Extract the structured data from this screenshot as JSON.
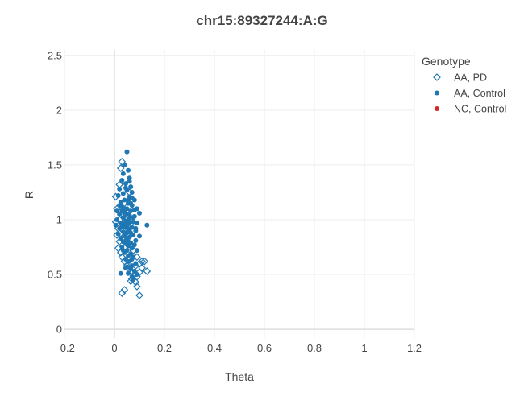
{
  "chart_data": {
    "type": "scatter",
    "title": "chr15:89327244:A:G",
    "xlabel": "Theta",
    "ylabel": "R",
    "xlim": [
      -0.2,
      1.2
    ],
    "ylim": [
      -0.08,
      2.55
    ],
    "x_ticks": [
      -0.2,
      0,
      0.2,
      0.4,
      0.6,
      0.8,
      1,
      1.2
    ],
    "x_tick_labels": [
      "−0.2",
      "0",
      "0.2",
      "0.4",
      "0.6",
      "0.8",
      "1",
      "1.2"
    ],
    "y_ticks": [
      0,
      0.5,
      1,
      1.5,
      2,
      2.5
    ],
    "y_tick_labels": [
      "0",
      "0.5",
      "1",
      "1.5",
      "2",
      "2.5"
    ],
    "grid": true,
    "legend": {
      "title": "Genotype",
      "position": "top-right"
    },
    "series": [
      {
        "name": "AA, PD",
        "marker": "diamond-open",
        "color": "#1f77b4",
        "points": [
          [
            0.03,
            1.53
          ],
          [
            0.025,
            1.47
          ],
          [
            0.005,
            1.21
          ],
          [
            0.02,
            1.32
          ],
          [
            0.01,
            1.1
          ],
          [
            0.005,
            0.98
          ],
          [
            0.015,
            0.92
          ],
          [
            0.01,
            0.86
          ],
          [
            0.02,
            0.8
          ],
          [
            0.015,
            0.74
          ],
          [
            0.025,
            0.7
          ],
          [
            0.03,
            0.66
          ],
          [
            0.04,
            0.62
          ],
          [
            0.05,
            0.58
          ],
          [
            0.06,
            0.55
          ],
          [
            0.07,
            0.52
          ],
          [
            0.08,
            0.5
          ],
          [
            0.09,
            0.48
          ],
          [
            0.1,
            0.52
          ],
          [
            0.11,
            0.56
          ],
          [
            0.12,
            0.62
          ],
          [
            0.13,
            0.53
          ],
          [
            0.1,
            0.6
          ],
          [
            0.085,
            0.58
          ],
          [
            0.07,
            0.46
          ],
          [
            0.065,
            0.44
          ],
          [
            0.085,
            0.43
          ],
          [
            0.09,
            0.39
          ],
          [
            0.1,
            0.31
          ],
          [
            0.04,
            0.36
          ],
          [
            0.03,
            0.33
          ],
          [
            0.035,
            0.9
          ],
          [
            0.045,
            1.05
          ],
          [
            0.055,
            0.95
          ],
          [
            0.04,
            1.15
          ],
          [
            0.06,
            1.25
          ],
          [
            0.05,
            0.78
          ],
          [
            0.075,
            0.72
          ],
          [
            0.09,
            0.66
          ],
          [
            0.11,
            0.62
          ],
          [
            0.02,
            1.0
          ],
          [
            0.035,
            0.84
          ]
        ]
      },
      {
        "name": "AA, Control",
        "marker": "circle",
        "color": "#1f77b4",
        "points": [
          [
            0.05,
            1.62
          ],
          [
            0.04,
            1.5
          ],
          [
            0.035,
            1.42
          ],
          [
            0.055,
            1.45
          ],
          [
            0.06,
            1.38
          ],
          [
            0.03,
            1.36
          ],
          [
            0.045,
            1.33
          ],
          [
            0.065,
            1.3
          ],
          [
            0.02,
            1.28
          ],
          [
            0.05,
            1.27
          ],
          [
            0.07,
            1.25
          ],
          [
            0.035,
            1.24
          ],
          [
            0.015,
            1.22
          ],
          [
            0.06,
            1.21
          ],
          [
            0.08,
            1.18
          ],
          [
            0.04,
            1.18
          ],
          [
            0.025,
            1.16
          ],
          [
            0.055,
            1.15
          ],
          [
            0.07,
            1.13
          ],
          [
            0.09,
            1.1
          ],
          [
            0.03,
            1.12
          ],
          [
            0.045,
            1.1
          ],
          [
            0.01,
            1.08
          ],
          [
            0.065,
            1.08
          ],
          [
            0.1,
            1.06
          ],
          [
            0.02,
            1.05
          ],
          [
            0.05,
            1.05
          ],
          [
            0.08,
            1.03
          ],
          [
            0.035,
            1.02
          ],
          [
            0.06,
            1.01
          ],
          [
            0.01,
            1.0
          ],
          [
            0.045,
            0.99
          ],
          [
            0.075,
            0.98
          ],
          [
            0.09,
            0.97
          ],
          [
            0.025,
            0.97
          ],
          [
            0.055,
            0.96
          ],
          [
            0.13,
            0.95
          ],
          [
            0.005,
            0.95
          ],
          [
            0.04,
            0.94
          ],
          [
            0.07,
            0.93
          ],
          [
            0.02,
            0.92
          ],
          [
            0.06,
            0.91
          ],
          [
            0.085,
            0.9
          ],
          [
            0.035,
            0.89
          ],
          [
            0.05,
            0.88
          ],
          [
            0.015,
            0.87
          ],
          [
            0.075,
            0.86
          ],
          [
            0.04,
            0.85
          ],
          [
            0.1,
            0.85
          ],
          [
            0.06,
            0.84
          ],
          [
            0.025,
            0.83
          ],
          [
            0.05,
            0.82
          ],
          [
            0.085,
            0.81
          ],
          [
            0.035,
            0.8
          ],
          [
            0.065,
            0.79
          ],
          [
            0.045,
            0.78
          ],
          [
            0.08,
            0.77
          ],
          [
            0.055,
            0.76
          ],
          [
            0.03,
            0.75
          ],
          [
            0.07,
            0.74
          ],
          [
            0.05,
            0.72
          ],
          [
            0.09,
            0.72
          ],
          [
            0.04,
            0.7
          ],
          [
            0.065,
            0.69
          ],
          [
            0.055,
            0.67
          ],
          [
            0.075,
            0.66
          ],
          [
            0.045,
            0.64
          ],
          [
            0.06,
            0.62
          ],
          [
            0.085,
            0.6
          ],
          [
            0.07,
            0.58
          ],
          [
            0.05,
            0.57
          ],
          [
            0.065,
            0.55
          ],
          [
            0.08,
            0.53
          ],
          [
            0.055,
            0.51
          ],
          [
            0.09,
            0.5
          ],
          [
            0.07,
            0.48
          ],
          [
            0.025,
            0.51
          ],
          [
            0.075,
            0.45
          ],
          [
            0.06,
            1.35
          ],
          [
            0.045,
            1.29
          ],
          [
            0.07,
            1.2
          ],
          [
            0.03,
            1.08
          ],
          [
            0.06,
            1.04
          ],
          [
            0.04,
            0.96
          ],
          [
            0.05,
            0.93
          ],
          [
            0.065,
            0.88
          ],
          [
            0.055,
            0.8
          ],
          [
            0.035,
            0.72
          ],
          [
            0.07,
            0.64
          ],
          [
            0.045,
            0.56
          ],
          [
            0.065,
            1.15
          ],
          [
            0.02,
            1.13
          ],
          [
            0.08,
            1.09
          ],
          [
            0.075,
            1.02
          ],
          [
            0.03,
            0.94
          ],
          [
            0.085,
            0.92
          ],
          [
            0.05,
            1.1
          ],
          [
            0.04,
            1.06
          ],
          [
            0.06,
            0.98
          ],
          [
            0.055,
            1.18
          ]
        ]
      },
      {
        "name": "NC, Control",
        "marker": "circle",
        "color": "#d62728",
        "points": []
      }
    ]
  }
}
